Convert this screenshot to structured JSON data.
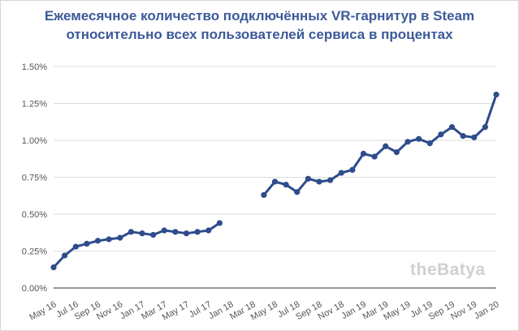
{
  "chart_data": {
    "type": "line",
    "title_line1": "Ежемесячное количество подключённых VR-гарнитур в Steam",
    "title_line2": "относительно всех пользователей сервиса в процентах",
    "xlabel": "",
    "ylabel": "",
    "ylim": [
      0,
      1.5
    ],
    "y_ticks": [
      "0.00%",
      "0.25%",
      "0.50%",
      "0.75%",
      "1.00%",
      "1.25%",
      "1.50%"
    ],
    "y_tick_values": [
      0,
      0.25,
      0.5,
      0.75,
      1.0,
      1.25,
      1.5
    ],
    "x_ticks": [
      "May 16",
      "Jul 16",
      "Sep 16",
      "Nov 16",
      "Jan 17",
      "Mar 17",
      "May 17",
      "Jul 17",
      "Jan 18",
      "Mar 18",
      "May 18",
      "Jul 18",
      "Sep 18",
      "Nov 18",
      "Jan 19",
      "Mar 19",
      "May 19",
      "Jul 19",
      "Sep 19",
      "Nov 19",
      "Jan 20"
    ],
    "x_tick_index": [
      0,
      2,
      4,
      6,
      8,
      10,
      12,
      14,
      16,
      18,
      20,
      22,
      24,
      26,
      28,
      30,
      32,
      34,
      36,
      38,
      40
    ],
    "grid": true,
    "color": "#2e4c8c",
    "series": [
      {
        "segments": [
          {
            "x_index": [
              0,
              1,
              2,
              3,
              4,
              5,
              6,
              7,
              8,
              9,
              10,
              11,
              12,
              13,
              14,
              15
            ],
            "values": [
              0.14,
              0.22,
              0.28,
              0.3,
              0.32,
              0.33,
              0.34,
              0.38,
              0.37,
              0.36,
              0.39,
              0.38,
              0.37,
              0.38,
              0.39,
              0.44
            ]
          },
          {
            "x_index": [
              19,
              20,
              21,
              22,
              23,
              24,
              25,
              26,
              27,
              28,
              29,
              30,
              31,
              32,
              33,
              34,
              35,
              36,
              37,
              38,
              39,
              40
            ],
            "values": [
              0.63,
              0.72,
              0.7,
              0.65,
              0.74,
              0.72,
              0.73,
              0.78,
              0.8,
              0.91,
              0.89,
              0.96,
              0.92,
              0.99,
              1.01,
              0.98,
              1.04,
              1.09,
              1.03,
              1.02,
              1.09,
              1.31
            ]
          }
        ]
      }
    ],
    "watermark": "theBatya"
  }
}
